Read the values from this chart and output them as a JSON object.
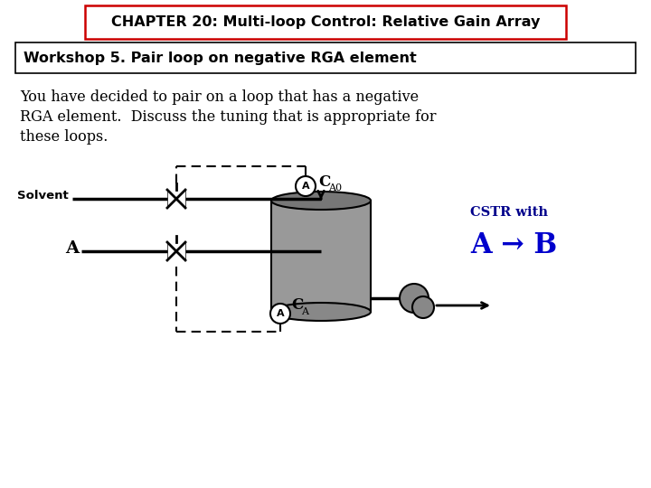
{
  "title": "CHAPTER 20: Multi-loop Control: Relative Gain Array",
  "subtitle": "Workshop 5. Pair loop on negative RGA element",
  "body_line1": "You have decided to pair on a loop that has a negative",
  "body_line2": "RGA element.  Discuss the tuning that is appropriate for",
  "body_line3": "these loops.",
  "cstr_label": "CSTR with",
  "reaction_label": "A → B",
  "solvent_label": "Solvent",
  "A_label": "A",
  "CA0_main": "C",
  "CA0_sub": "A0",
  "CA_main": "C",
  "CA_sub": "A",
  "sensor_label": "A",
  "title_color": "#000000",
  "title_box_edge": "#cc0000",
  "subtitle_box_edge": "#000000",
  "body_color": "#000000",
  "cstr_text_color": "#00008B",
  "reaction_color": "#0000cc",
  "tank_fill": "#999999",
  "tank_top": "#777777",
  "pump_fill": "#888888",
  "bg_color": "#ffffff"
}
